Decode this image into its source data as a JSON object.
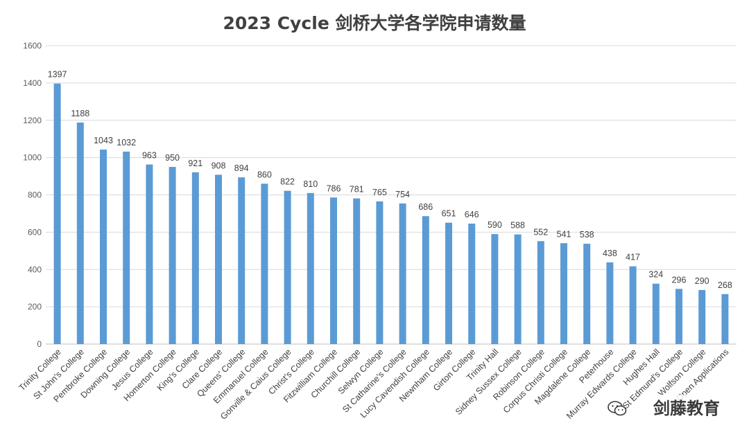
{
  "chart_data": {
    "type": "bar",
    "title": "2023 Cycle 剑桥大学各学院申请数量",
    "xlabel": "",
    "ylabel": "",
    "ylim": [
      0,
      1600
    ],
    "yticks": [
      0,
      200,
      400,
      600,
      800,
      1000,
      1200,
      1400,
      1600
    ],
    "grid": true,
    "bar_color": "#5B9BD5",
    "categories": [
      "Trinity College",
      "St John's College",
      "Pembroke College",
      "Downing College",
      "Jesus College",
      "Homerton College",
      "King's College",
      "Clare College",
      "Queens' College",
      "Emmanuel College",
      "Gonville & Caius College",
      "Christ's College",
      "Fitzwilliam College",
      "Churchill College",
      "Selwyn College",
      "St Catharine's College",
      "Lucy Cavendish College",
      "Newnham College",
      "Girton College",
      "Trinity Hall",
      "Sidney Sussex College",
      "Robinson College",
      "Corpus Christi College",
      "Magdalene College",
      "Peterhouse",
      "Murray Edwards College",
      "Hughes Hall",
      "St Edmund's College",
      "Wolfson College",
      "Open Applications"
    ],
    "values": [
      1397,
      1188,
      1043,
      1032,
      963,
      950,
      921,
      908,
      894,
      860,
      822,
      810,
      786,
      781,
      765,
      754,
      686,
      651,
      646,
      590,
      588,
      552,
      541,
      538,
      438,
      417,
      324,
      296,
      290,
      268
    ]
  },
  "watermark": {
    "brand": "剑藤教育",
    "icon": "wechat-icon"
  }
}
